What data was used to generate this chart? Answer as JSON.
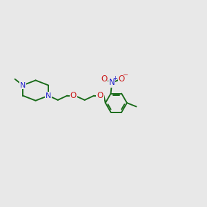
{
  "bg_color": "#e8e8e8",
  "bond_color": "#1a6b1a",
  "N_color": "#2020cc",
  "O_color": "#cc2020",
  "C_color": "#1a6b1a",
  "lw": 1.4,
  "figsize": [
    3.0,
    3.0
  ],
  "dpi": 100,
  "xlim": [
    0,
    10
  ],
  "ylim": [
    0,
    10
  ]
}
